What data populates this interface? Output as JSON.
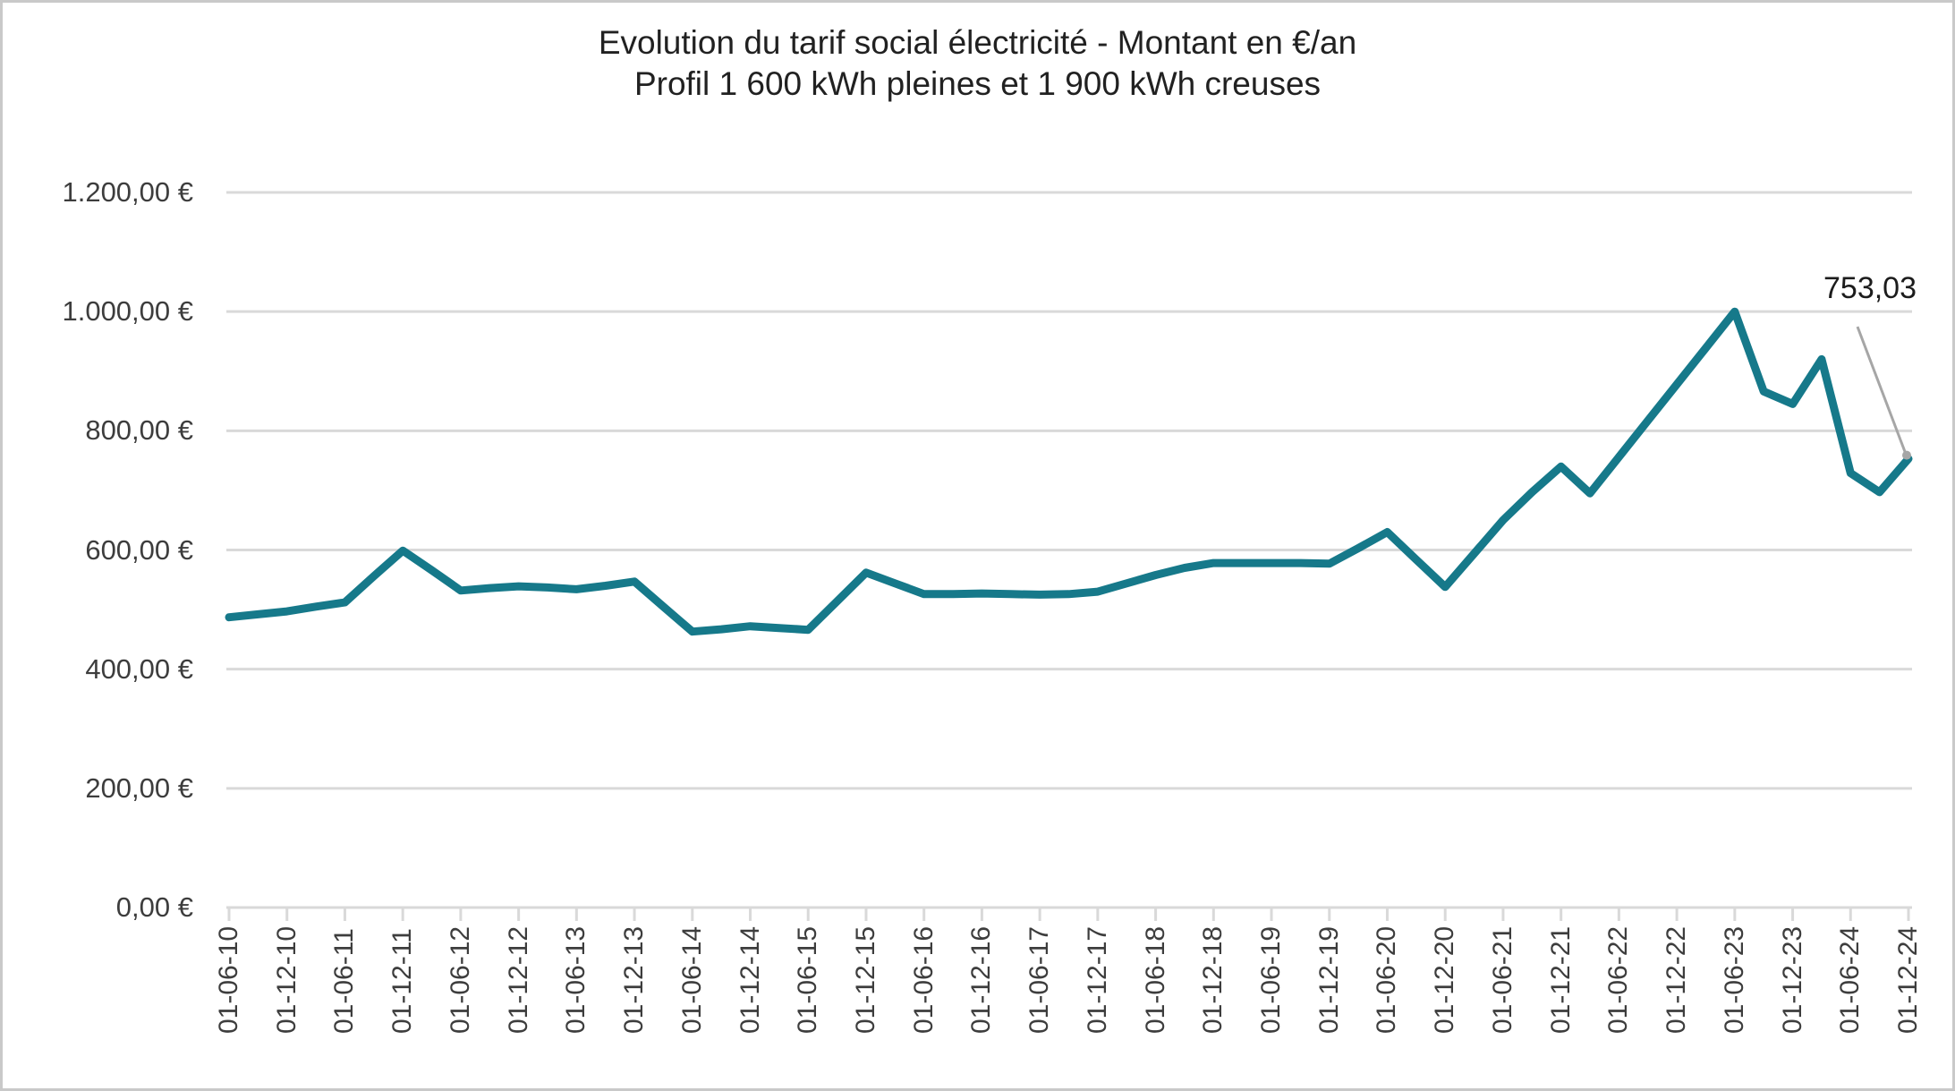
{
  "chart_data": {
    "type": "line",
    "title": "Evolution du tarif social électricité - Montant en €/an",
    "subtitle": "Profil 1 600 kWh pleines et 1 900 kWh creuses",
    "grid": true,
    "legend": "none",
    "ylim": [
      0,
      1200
    ],
    "y_tick_labels": [
      "1.200,00 €",
      "1.000,00 €",
      "800,00 €",
      "600,00 €",
      "400,00 €",
      "200,00 €",
      "0,00 €"
    ],
    "y_tick_values": [
      1200,
      1000,
      800,
      600,
      400,
      200,
      0
    ],
    "x_tick_labels": [
      "01-06-10",
      "01-12-10",
      "01-06-11",
      "01-12-11",
      "01-06-12",
      "01-12-12",
      "01-06-13",
      "01-12-13",
      "01-06-14",
      "01-12-14",
      "01-06-15",
      "01-12-15",
      "01-06-16",
      "01-12-16",
      "01-06-17",
      "01-12-17",
      "01-06-18",
      "01-12-18",
      "01-06-19",
      "01-12-19",
      "01-06-20",
      "01-12-20",
      "01-06-21",
      "01-12-21",
      "01-06-22",
      "01-12-22",
      "01-06-23",
      "01-12-23",
      "01-06-24",
      "01-12-24"
    ],
    "series": [
      {
        "name": "Tarif social électricité (€/an)",
        "points": [
          {
            "date": "01-06-10",
            "value": 487
          },
          {
            "date": "01-09-10",
            "value": 492
          },
          {
            "date": "01-12-10",
            "value": 497
          },
          {
            "date": "01-03-11",
            "value": 505
          },
          {
            "date": "01-06-11",
            "value": 512
          },
          {
            "date": "01-09-11",
            "value": 556
          },
          {
            "date": "01-12-11",
            "value": 599
          },
          {
            "date": "01-03-12",
            "value": 566
          },
          {
            "date": "01-06-12",
            "value": 532
          },
          {
            "date": "01-09-12",
            "value": 536
          },
          {
            "date": "01-12-12",
            "value": 539
          },
          {
            "date": "01-03-13",
            "value": 537
          },
          {
            "date": "01-06-13",
            "value": 534
          },
          {
            "date": "01-09-13",
            "value": 540
          },
          {
            "date": "01-12-13",
            "value": 547
          },
          {
            "date": "01-03-14",
            "value": 505
          },
          {
            "date": "01-06-14",
            "value": 463
          },
          {
            "date": "01-09-14",
            "value": 467
          },
          {
            "date": "01-12-14",
            "value": 472
          },
          {
            "date": "01-03-15",
            "value": 469
          },
          {
            "date": "01-06-15",
            "value": 466
          },
          {
            "date": "01-09-15",
            "value": 514
          },
          {
            "date": "01-12-15",
            "value": 562
          },
          {
            "date": "01-03-16",
            "value": 544
          },
          {
            "date": "01-06-16",
            "value": 526
          },
          {
            "date": "01-09-16",
            "value": 526
          },
          {
            "date": "01-12-16",
            "value": 527
          },
          {
            "date": "01-03-17",
            "value": 526
          },
          {
            "date": "01-06-17",
            "value": 525
          },
          {
            "date": "01-09-17",
            "value": 526
          },
          {
            "date": "01-12-17",
            "value": 530
          },
          {
            "date": "01-03-18",
            "value": 544
          },
          {
            "date": "01-06-18",
            "value": 558
          },
          {
            "date": "01-09-18",
            "value": 570
          },
          {
            "date": "01-12-18",
            "value": 578
          },
          {
            "date": "01-03-19",
            "value": 578
          },
          {
            "date": "01-06-19",
            "value": 578
          },
          {
            "date": "01-09-19",
            "value": 578
          },
          {
            "date": "01-12-19",
            "value": 577
          },
          {
            "date": "01-03-20",
            "value": 603
          },
          {
            "date": "01-06-20",
            "value": 630
          },
          {
            "date": "01-09-20",
            "value": 584
          },
          {
            "date": "01-12-20",
            "value": 538
          },
          {
            "date": "01-03-21",
            "value": 594
          },
          {
            "date": "01-06-21",
            "value": 650
          },
          {
            "date": "01-09-21",
            "value": 697
          },
          {
            "date": "01-12-21",
            "value": 740
          },
          {
            "date": "01-03-22",
            "value": 695
          },
          {
            "date": "01-06-22",
            "value": 756
          },
          {
            "date": "01-09-22",
            "value": 817
          },
          {
            "date": "01-12-22",
            "value": 878
          },
          {
            "date": "01-03-23",
            "value": 939
          },
          {
            "date": "01-06-23",
            "value": 1000
          },
          {
            "date": "01-09-23",
            "value": 866
          },
          {
            "date": "01-12-23",
            "value": 845
          },
          {
            "date": "01-03-24",
            "value": 920
          },
          {
            "date": "01-06-24",
            "value": 729
          },
          {
            "date": "01-09-24",
            "value": 697
          },
          {
            "date": "01-12-24",
            "value": 753.03
          }
        ]
      }
    ],
    "annotation": {
      "text": "753,03",
      "value": 753.03,
      "target_date": "01-12-24"
    },
    "colors": {
      "line": "#16798a",
      "gridline": "#d9d9d9",
      "tick": "#d9d9d9",
      "leader": "#a6a6a6",
      "axis_text": "#3d3d3d",
      "title_text": "#212121",
      "background": "#ffffff",
      "border": "#c9c9c9"
    }
  }
}
